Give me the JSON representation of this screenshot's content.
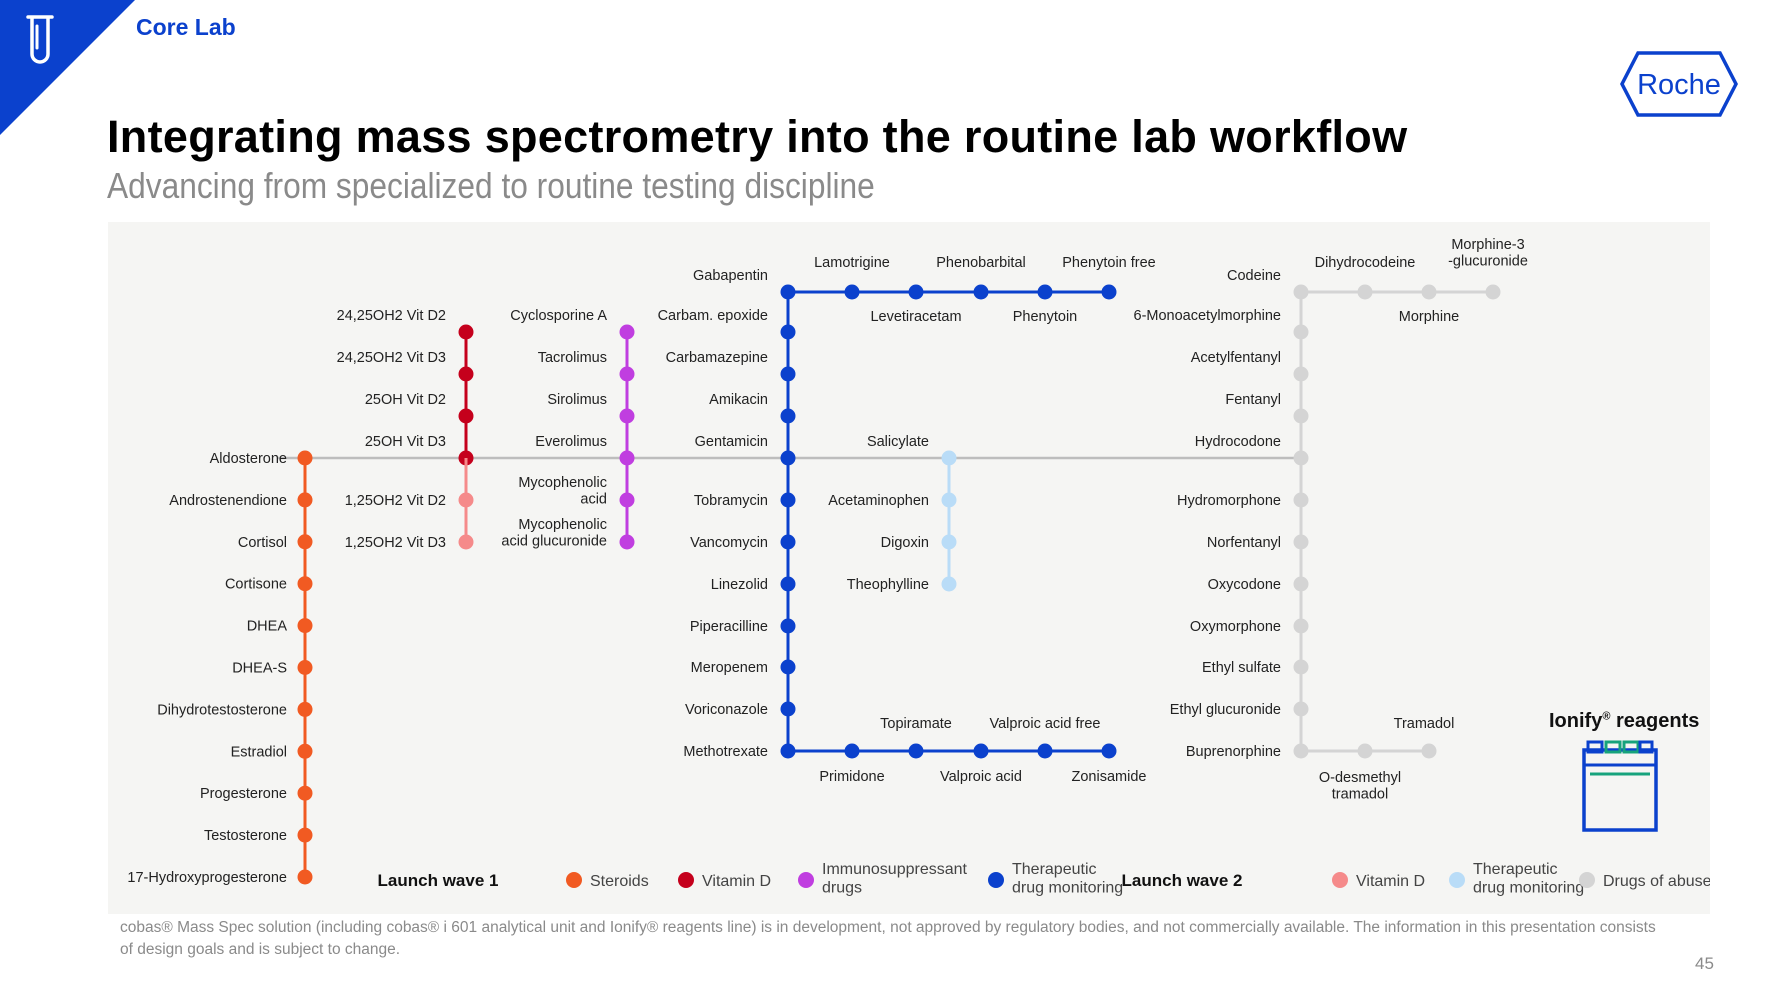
{
  "header": {
    "section": "Core Lab",
    "logo_text": "Roche",
    "title": "Integrating mass spectrometry into the routine lab workflow",
    "subtitle": "Advancing from specialized to routine testing discipline"
  },
  "colors": {
    "brand_blue": "#0b41cd",
    "steroids": "#f15a22",
    "vitamin_d_wave1": "#c5001c",
    "immunosuppressant": "#c03ee0",
    "tdm_wave1": "#0b41cd",
    "vitamin_d_wave2": "#f58a8a",
    "tdm_wave2": "#b9dcf7",
    "drugs_of_abuse": "#d4d4d4",
    "panel_bg": "#f5f5f3",
    "trunk": "#bdbdbd"
  },
  "lines": {
    "steroids": [
      "Aldosterone",
      "Androstenendione",
      "Cortisol",
      "Cortisone",
      "DHEA",
      "DHEA-S",
      "Dihydrotestosterone",
      "Estradiol",
      "Progesterone",
      "Testosterone",
      "17-Hydroxyprogesterone"
    ],
    "vitamin_d_wave1": [
      "24,25OH2 Vit D2",
      "24,25OH2 Vit D3",
      "25OH Vit D2",
      "25OH Vit D3"
    ],
    "vitamin_d_wave2": [
      "1,25OH2 Vit D2",
      "1,25OH2 Vit D3"
    ],
    "immunosuppressants": [
      "Cyclosporine A",
      "Tacrolimus",
      "Sirolimus",
      "Everolimus",
      "Mycophenolic acid",
      "Mycophenolic acid glucuronide"
    ],
    "tdm_main": [
      "Gabapentin",
      "Carbam. epoxide",
      "Carbamazepine",
      "Amikacin",
      "Gentamicin",
      "Tobramycin",
      "Vancomycin",
      "Linezolid",
      "Piperacilline",
      "Meropenem",
      "Voriconazole",
      "Methotrexate"
    ],
    "tdm_top_branch": [
      "Lamotrigine",
      "Levetiracetam",
      "Phenobarbital",
      "Phenytoin",
      "Phenytoin free"
    ],
    "tdm_bottom_branch": [
      "Primidone",
      "Topiramate",
      "Valproic acid",
      "Valproic acid free",
      "Zonisamide"
    ],
    "tdm_wave2": [
      "Salicylate",
      "Acetaminophen",
      "Digoxin",
      "Theophylline"
    ],
    "drugs_of_abuse_main": [
      "Codeine",
      "6-Monoacetylmorphine",
      "Acetylfentanyl",
      "Fentanyl",
      "Hydrocodone",
      "Hydromorphone",
      "Norfentanyl",
      "Oxycodone",
      "Oxymorphone",
      "Ethyl sulfate",
      "Ethyl glucuronide",
      "Buprenorphine"
    ],
    "drugs_of_abuse_top_branch": [
      "Dihydrocodeine",
      "Morphine",
      "Morphine-3 -glucuronide"
    ],
    "drugs_of_abuse_bottom_branch": [
      "O-desmethyl tramadol",
      "Tramadol"
    ]
  },
  "legend": {
    "wave1_label": "Launch wave 1",
    "wave2_label": "Launch wave 2",
    "wave1": [
      {
        "label": "Steroids",
        "color": "#f15a22"
      },
      {
        "label": "Vitamin D",
        "color": "#c5001c"
      },
      {
        "label": "Immunosuppressant drugs",
        "color": "#c03ee0"
      },
      {
        "label": "Therapeutic drug monitoring",
        "color": "#0b41cd"
      }
    ],
    "wave2": [
      {
        "label": "Vitamin D",
        "color": "#f58a8a"
      },
      {
        "label": "Therapeutic drug monitoring",
        "color": "#b9dcf7"
      },
      {
        "label": "Drugs of abuse",
        "color": "#d4d4d4"
      }
    ]
  },
  "reagents": {
    "brand": "Ionify",
    "reg": "®",
    "label": "reagents"
  },
  "footnote": "cobas® Mass Spec solution (including cobas® i 601 analytical unit and Ionify® reagents line) is in development, not approved by regulatory bodies, and not commercially available. The information in this presentation consists of design goals and is subject to change.",
  "page_number": "45"
}
